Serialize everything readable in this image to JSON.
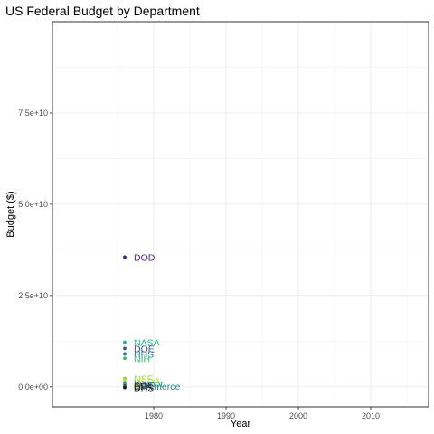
{
  "chart_data": {
    "type": "scatter",
    "title": "US Federal Budget by Department",
    "xlabel": "Year",
    "ylabel": "Budget ($)",
    "xlim": [
      1966,
      2018
    ],
    "ylim": [
      -5500000000,
      100000000000
    ],
    "x_ticks": [
      1980,
      1990,
      2000,
      2010
    ],
    "x_tick_labels": [
      "1980",
      "1990",
      "2000",
      "2010"
    ],
    "y_ticks": [
      0,
      25000000000,
      50000000000,
      75000000000
    ],
    "y_tick_labels": [
      "0.0e+00",
      "2.5e+10",
      "5.0e+10",
      "7.5e+10"
    ],
    "grid": true,
    "legend": "none",
    "points": [
      {
        "label": "DOD",
        "x": 1976,
        "y": 35500000000,
        "color": "#482173"
      },
      {
        "label": "NASA",
        "x": 1976,
        "y": 12200000000,
        "color": "#2db27d"
      },
      {
        "label": "DOE",
        "x": 1976,
        "y": 10500000000,
        "color": "#3b528b"
      },
      {
        "label": "HHS",
        "x": 1976,
        "y": 9000000000,
        "color": "#2e6f8e"
      },
      {
        "label": "NIH",
        "x": 1976,
        "y": 7800000000,
        "color": "#35b779"
      },
      {
        "label": "NSF",
        "x": 1976,
        "y": 2300000000,
        "color": "#8fd744"
      },
      {
        "label": "USDA",
        "x": 1976,
        "y": 1600000000,
        "color": "#c2df23"
      },
      {
        "label": "Interior",
        "x": 1976,
        "y": 1000000000,
        "color": "#1f9e89"
      },
      {
        "label": "DOT",
        "x": 1976,
        "y": 500000000,
        "color": "#31688e"
      },
      {
        "label": "VA",
        "x": 1976,
        "y": 350000000,
        "color": "#fde725"
      },
      {
        "label": "EPA",
        "x": 1976,
        "y": 250000000,
        "color": "#440154"
      },
      {
        "label": "Commerce",
        "x": 1976,
        "y": 150000000,
        "color": "#26828e"
      },
      {
        "label": "DHS",
        "x": 1976,
        "y": -200000000,
        "color": "#1a1a1a"
      }
    ]
  }
}
